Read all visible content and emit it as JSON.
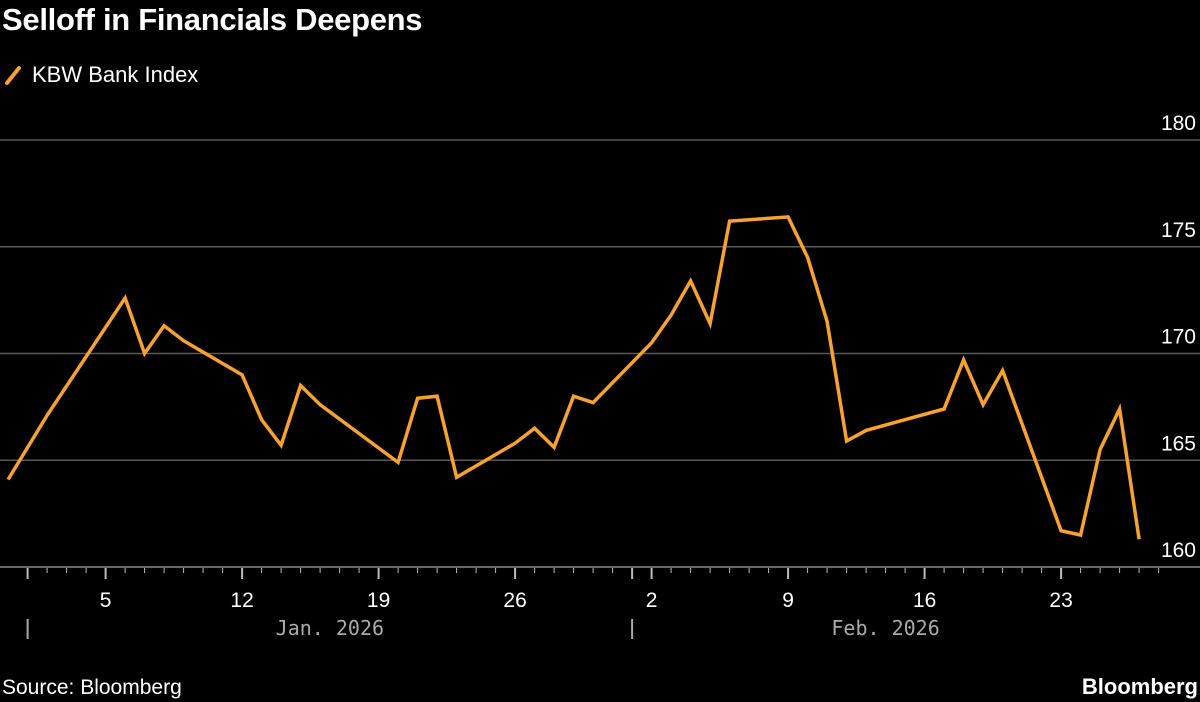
{
  "chart_data": {
    "type": "line",
    "title": "Selloff in Financials Deepens",
    "xlabel": "",
    "ylabel": "",
    "ylim": [
      160,
      180
    ],
    "yticks": [
      160,
      165,
      170,
      175,
      180
    ],
    "grid": true,
    "legend_placement": "top-left",
    "xtick_labels": [
      {
        "date": "2026-01-05",
        "label": "5"
      },
      {
        "date": "2026-01-12",
        "label": "12"
      },
      {
        "date": "2026-01-19",
        "label": "19"
      },
      {
        "date": "2026-01-26",
        "label": "26"
      },
      {
        "date": "2026-02-02",
        "label": "2"
      },
      {
        "date": "2026-02-09",
        "label": "9"
      },
      {
        "date": "2026-02-16",
        "label": "16"
      },
      {
        "date": "2026-02-23",
        "label": "23"
      }
    ],
    "month_labels": [
      {
        "start": "2026-01-01",
        "label": "Jan. 2026"
      },
      {
        "start": "2026-02-01",
        "label": "Feb. 2026"
      }
    ],
    "series": [
      {
        "name": "KBW Bank Index",
        "color": "#f7a231",
        "x": [
          "2025-12-31",
          "2026-01-02",
          "2026-01-06",
          "2026-01-07",
          "2026-01-08",
          "2026-01-09",
          "2026-01-12",
          "2026-01-13",
          "2026-01-14",
          "2026-01-15",
          "2026-01-16",
          "2026-01-20",
          "2026-01-21",
          "2026-01-22",
          "2026-01-23",
          "2026-01-26",
          "2026-01-27",
          "2026-01-28",
          "2026-01-29",
          "2026-01-30",
          "2026-02-02",
          "2026-02-03",
          "2026-02-04",
          "2026-02-05",
          "2026-02-06",
          "2026-02-09",
          "2026-02-10",
          "2026-02-11",
          "2026-02-12",
          "2026-02-13",
          "2026-02-17",
          "2026-02-18",
          "2026-02-19",
          "2026-02-20",
          "2026-02-23",
          "2026-02-24",
          "2026-02-25",
          "2026-02-26",
          "2026-02-27"
        ],
        "values": [
          164.1,
          167.1,
          172.6,
          170.0,
          171.3,
          170.6,
          169.0,
          166.9,
          165.7,
          168.5,
          167.6,
          164.9,
          167.9,
          168.0,
          164.2,
          165.8,
          166.5,
          165.6,
          168.0,
          167.7,
          170.5,
          171.8,
          173.4,
          171.4,
          176.2,
          176.4,
          174.5,
          171.5,
          165.9,
          166.4,
          167.4,
          169.7,
          167.6,
          169.2,
          161.7,
          161.5,
          165.5,
          167.4,
          161.3
        ]
      }
    ]
  },
  "footer": {
    "source": "Source: Bloomberg",
    "brand": "Bloomberg"
  },
  "colors": {
    "background": "#000000",
    "gridline": "#5a5a5a",
    "axis": "#8a8a8a"
  }
}
